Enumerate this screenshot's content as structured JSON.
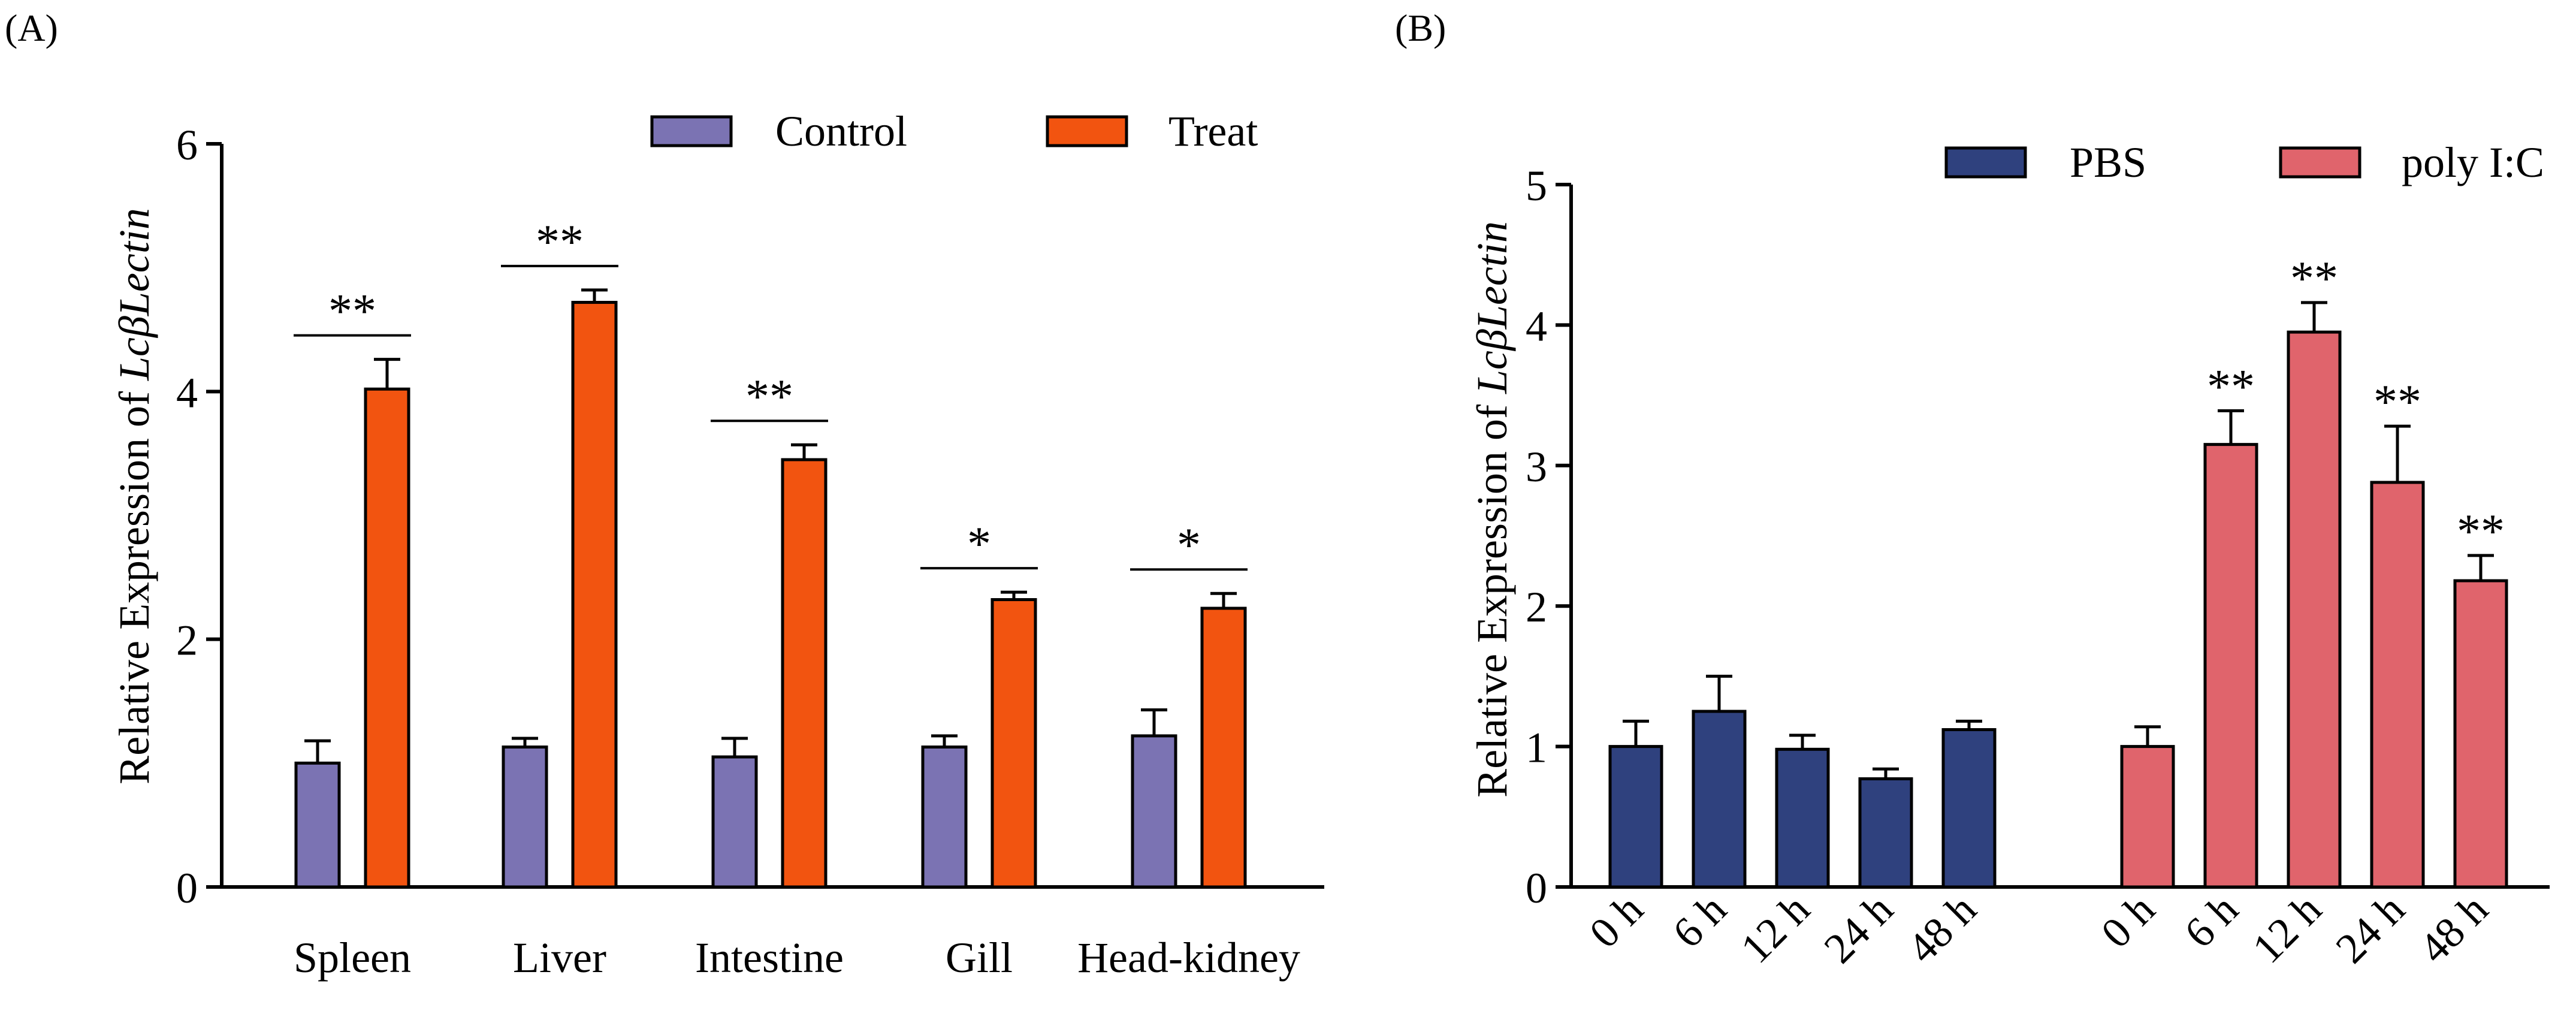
{
  "panels": [
    {
      "tag": "(A)",
      "ylabel_prefix": "Relative Expression of ",
      "ylabel_gene": "LcβLectin",
      "legend": [
        {
          "label": "Control",
          "color": "#7b73b3"
        },
        {
          "label": "Treat",
          "color": "#f25410"
        }
      ]
    },
    {
      "tag": "(B)",
      "ylabel_prefix": "Relative Expression of ",
      "ylabel_gene": "LcβLectin",
      "legend": [
        {
          "label": "PBS",
          "color": "#2f417e"
        },
        {
          "label": "poly I:C",
          "color": "#e0646c"
        }
      ]
    }
  ],
  "chart_data": [
    {
      "type": "bar",
      "title": "",
      "xlabel": "",
      "ylabel": "Relative Expression of LcβLectin",
      "ylim": [
        0,
        6
      ],
      "yticks": [
        0,
        2,
        4,
        6
      ],
      "categories": [
        "Spleen",
        "Liver",
        "Intestine",
        "Gill",
        "Head-kidney"
      ],
      "series": [
        {
          "name": "Control",
          "color": "#7b73b3",
          "values": [
            1.0,
            1.13,
            1.05,
            1.13,
            1.22
          ],
          "errors": [
            0.18,
            0.07,
            0.15,
            0.09,
            0.21
          ]
        },
        {
          "name": "Treat",
          "color": "#f25410",
          "values": [
            4.02,
            4.72,
            3.45,
            2.32,
            2.25
          ],
          "errors": [
            0.24,
            0.1,
            0.12,
            0.06,
            0.12
          ]
        }
      ],
      "significance": [
        "**",
        "**",
        "**",
        "*",
        "*"
      ]
    },
    {
      "type": "bar",
      "title": "",
      "xlabel": "",
      "ylabel": "Relative Expression of LcβLectin",
      "ylim": [
        0,
        5
      ],
      "yticks": [
        0,
        1,
        2,
        3,
        4,
        5
      ],
      "groups": [
        {
          "name": "PBS",
          "color": "#2f417e",
          "categories": [
            "0 h",
            "6 h",
            "12 h",
            "24 h",
            "48 h"
          ],
          "values": [
            1.0,
            1.25,
            0.98,
            0.77,
            1.12
          ],
          "errors": [
            0.18,
            0.25,
            0.1,
            0.07,
            0.06
          ],
          "significance": [
            "",
            "",
            "",
            "",
            ""
          ]
        },
        {
          "name": "poly I:C",
          "color": "#e0646c",
          "categories": [
            "0 h",
            "6 h",
            "12 h",
            "24 h",
            "48 h"
          ],
          "values": [
            1.0,
            3.15,
            3.95,
            2.88,
            2.18
          ],
          "errors": [
            0.14,
            0.24,
            0.21,
            0.4,
            0.18
          ],
          "significance": [
            "",
            "**",
            "**",
            "**",
            "**"
          ]
        }
      ]
    }
  ]
}
